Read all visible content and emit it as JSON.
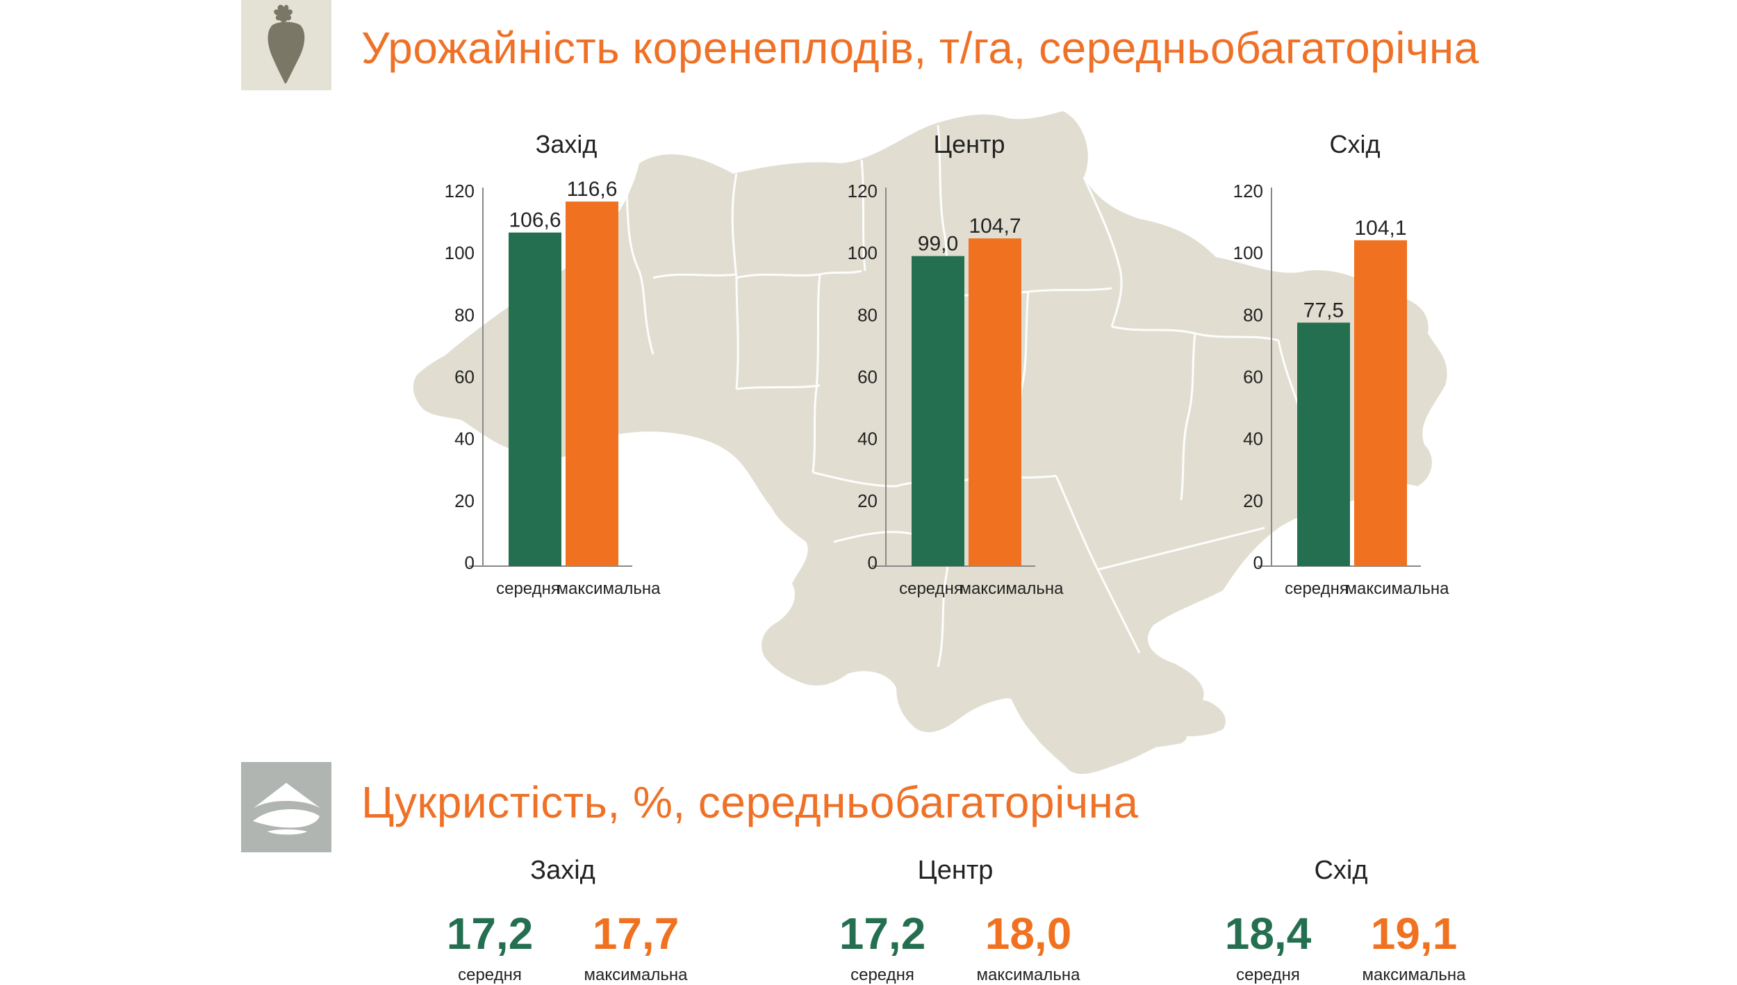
{
  "colors": {
    "avg": "#246f4f",
    "max": "#f0711f",
    "title": "#ef7127",
    "map_fill": "#e1ded1",
    "icon_bg_yield": "#e4e1d5",
    "icon_bg_sugar": "#b1b5b2",
    "beet_icon": "#7a7767"
  },
  "icons": {
    "yield": "beet-icon",
    "sugar": "sugar-pile-icon"
  },
  "yield": {
    "title": "Урожайність коренеплодів, т/га, середньобагаторічна"
  },
  "sugar": {
    "title": "Цукристість, %, середньобагаторічна",
    "regions": [
      {
        "name": "Захід",
        "avg": "17,2",
        "max": "17,7",
        "avg_label": "середня",
        "max_label": "максимальна"
      },
      {
        "name": "Центр",
        "avg": "17,2",
        "max": "18,0",
        "avg_label": "середня",
        "max_label": "максимальна"
      },
      {
        "name": "Схід",
        "avg": "18,4",
        "max": "19,1",
        "avg_label": "середня",
        "max_label": "максимальна"
      }
    ]
  },
  "chart_data": [
    {
      "type": "bar",
      "title": "Захід",
      "categories": [
        "середня",
        "максимальна"
      ],
      "values": [
        106.6,
        116.6
      ],
      "value_labels": [
        "106,6",
        "116,6"
      ],
      "ylim": [
        0,
        120
      ],
      "yticks": [
        0,
        20,
        40,
        60,
        80,
        100,
        120
      ],
      "grid": false
    },
    {
      "type": "bar",
      "title": "Центр",
      "categories": [
        "середня",
        "максимальна"
      ],
      "values": [
        99.0,
        104.7
      ],
      "value_labels": [
        "99,0",
        "104,7"
      ],
      "ylim": [
        0,
        120
      ],
      "yticks": [
        0,
        20,
        40,
        60,
        80,
        100,
        120
      ],
      "grid": false
    },
    {
      "type": "bar",
      "title": "Схід",
      "categories": [
        "середня",
        "максимальна"
      ],
      "values": [
        77.5,
        104.1
      ],
      "value_labels": [
        "77,5",
        "104,1"
      ],
      "ylim": [
        0,
        120
      ],
      "yticks": [
        0,
        20,
        40,
        60,
        80,
        100,
        120
      ],
      "grid": false
    }
  ]
}
